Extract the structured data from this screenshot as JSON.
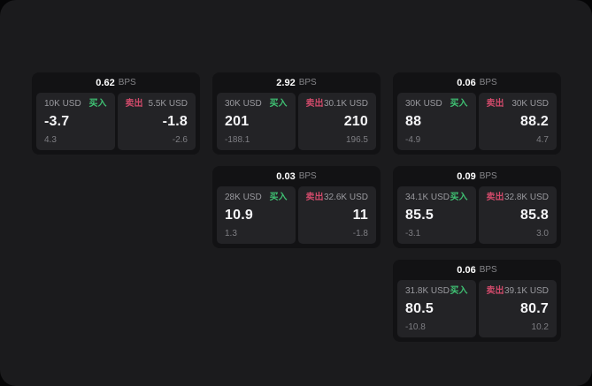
{
  "labels": {
    "bps_unit": "BPS",
    "buy": "买入",
    "sell": "卖出"
  },
  "colors": {
    "panel_bg": "#1b1b1d",
    "card_bg": "#121214",
    "tile_bg": "#232326",
    "buy_green": "#3fc173",
    "sell_red": "#d04a6a"
  },
  "cards": [
    {
      "bps": "0.62",
      "buy": {
        "amount": "10K USD",
        "value": "-3.7",
        "sub": "4.3"
      },
      "sell": {
        "amount": "5.5K USD",
        "value": "-1.8",
        "sub": "-2.6"
      }
    },
    {
      "bps": "2.92",
      "buy": {
        "amount": "30K USD",
        "value": "201",
        "sub": "-188.1"
      },
      "sell": {
        "amount": "30.1K USD",
        "value": "210",
        "sub": "196.5"
      }
    },
    {
      "bps": "0.06",
      "buy": {
        "amount": "30K USD",
        "value": "88",
        "sub": "-4.9"
      },
      "sell": {
        "amount": "30K USD",
        "value": "88.2",
        "sub": "4.7"
      }
    },
    {
      "bps": "0.03",
      "buy": {
        "amount": "28K USD",
        "value": "10.9",
        "sub": "1.3"
      },
      "sell": {
        "amount": "32.6K USD",
        "value": "11",
        "sub": "-1.8"
      }
    },
    {
      "bps": "0.09",
      "buy": {
        "amount": "34.1K USD",
        "value": "85.5",
        "sub": "-3.1"
      },
      "sell": {
        "amount": "32.8K USD",
        "value": "85.8",
        "sub": "3.0"
      }
    },
    {
      "bps": "0.06",
      "buy": {
        "amount": "31.8K USD",
        "value": "80.5",
        "sub": "-10.8"
      },
      "sell": {
        "amount": "39.1K USD",
        "value": "80.7",
        "sub": "10.2"
      }
    }
  ]
}
